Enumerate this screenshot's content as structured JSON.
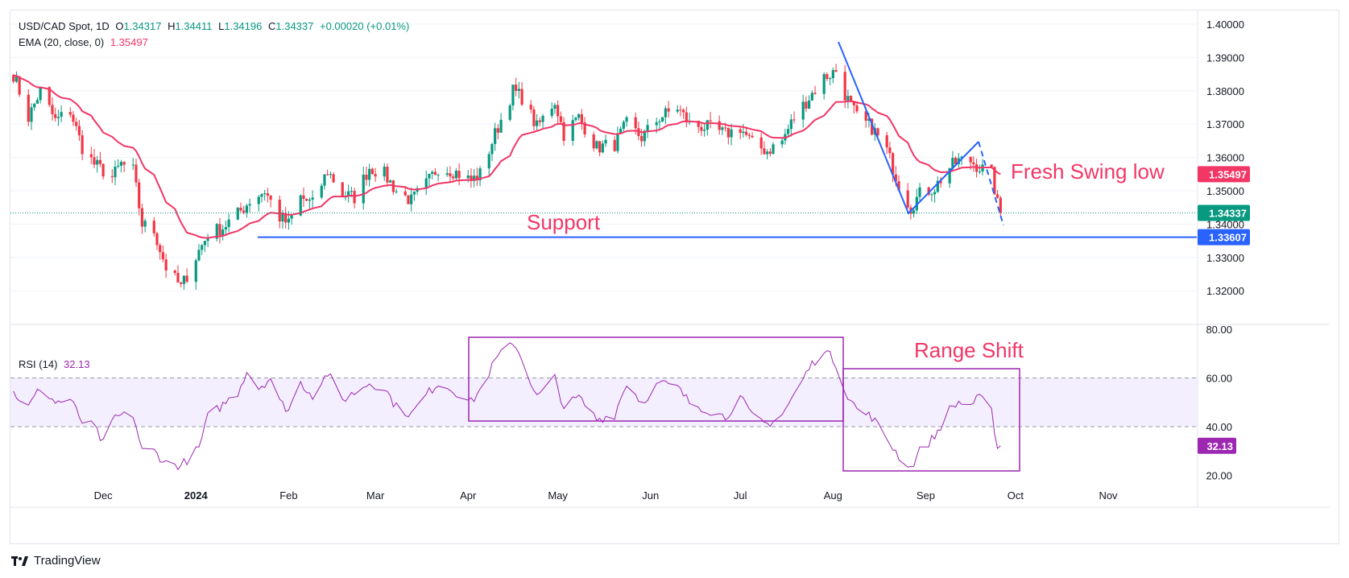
{
  "legend": {
    "symbol": "USD/CAD Spot, 1D",
    "open_label": "O",
    "open": "1.34317",
    "high_label": "H",
    "high": "1.34411",
    "low_label": "L",
    "low": "1.34196",
    "close_label": "C",
    "close": "1.34337",
    "change": "+0.00020 (+0.01%)",
    "ema_label": "EMA (20, close, 0)",
    "ema_value": "1.35497",
    "rsi_label": "RSI (14)",
    "rsi_value": "32.13"
  },
  "annotations": {
    "support": "Support",
    "fresh_swing_low": "Fresh Swing low",
    "range_shift": "Range Shift"
  },
  "badges": {
    "ema": "1.35497",
    "last": "1.34337",
    "support": "1.33607",
    "rsi": "32.13"
  },
  "brand": {
    "name": "TradingView"
  },
  "colors": {
    "up": "#089981",
    "down": "#f23645",
    "ema": "#f23666",
    "rsi": "#9c27b0",
    "trend": "#2962ff",
    "box": "#9c27b0",
    "rsi_band": "#f3efff",
    "grid": "#f0f3fa"
  },
  "chart_data": [
    {
      "type": "candlestick",
      "title": "USD/CAD Spot, 1D",
      "x_ticks": [
        "Dec",
        "2024",
        "Feb",
        "Mar",
        "Apr",
        "May",
        "Jun",
        "Jul",
        "Aug",
        "Sep",
        "Oct",
        "Nov"
      ],
      "y_ticks": [
        "1.40000",
        "1.39000",
        "1.38000",
        "1.37000",
        "1.36000",
        "1.35000",
        "1.34000",
        "1.33000",
        "1.32000"
      ],
      "ylim": [
        1.3116,
        1.4031
      ],
      "support_level": 1.33607,
      "last_close": 1.34337,
      "ema20_last": 1.35497,
      "close_anchors": [
        [
          "2023-11-01",
          1.385
        ],
        [
          "2023-11-06",
          1.372
        ],
        [
          "2023-11-10",
          1.38
        ],
        [
          "2023-11-15",
          1.371
        ],
        [
          "2023-11-20",
          1.374
        ],
        [
          "2023-11-24",
          1.363
        ],
        [
          "2023-11-28",
          1.358
        ],
        [
          "2023-12-04",
          1.354
        ],
        [
          "2023-12-07",
          1.358
        ],
        [
          "2023-12-11",
          1.356
        ],
        [
          "2023-12-14",
          1.34
        ],
        [
          "2023-12-18",
          1.338
        ],
        [
          "2023-12-22",
          1.327
        ],
        [
          "2023-12-27",
          1.321
        ],
        [
          "2024-01-02",
          1.332
        ],
        [
          "2024-01-05",
          1.337
        ],
        [
          "2024-01-10",
          1.339
        ],
        [
          "2024-01-15",
          1.343
        ],
        [
          "2024-01-19",
          1.347
        ],
        [
          "2024-01-24",
          1.35
        ],
        [
          "2024-01-29",
          1.342
        ],
        [
          "2024-02-01",
          1.34
        ],
        [
          "2024-02-05",
          1.348
        ],
        [
          "2024-02-09",
          1.346
        ],
        [
          "2024-02-14",
          1.356
        ],
        [
          "2024-02-19",
          1.349
        ],
        [
          "2024-02-23",
          1.348
        ],
        [
          "2024-02-28",
          1.357
        ],
        [
          "2024-03-04",
          1.355
        ],
        [
          "2024-03-08",
          1.35
        ],
        [
          "2024-03-13",
          1.347
        ],
        [
          "2024-03-18",
          1.352
        ],
        [
          "2024-03-22",
          1.357
        ],
        [
          "2024-03-27",
          1.356
        ],
        [
          "2024-04-02",
          1.353
        ],
        [
          "2024-04-05",
          1.355
        ],
        [
          "2024-04-10",
          1.367
        ],
        [
          "2024-04-16",
          1.38
        ],
        [
          "2024-04-19",
          1.378
        ],
        [
          "2024-04-24",
          1.369
        ],
        [
          "2024-04-30",
          1.377
        ],
        [
          "2024-05-03",
          1.367
        ],
        [
          "2024-05-08",
          1.372
        ],
        [
          "2024-05-14",
          1.363
        ],
        [
          "2024-05-20",
          1.364
        ],
        [
          "2024-05-24",
          1.37
        ],
        [
          "2024-05-29",
          1.366
        ],
        [
          "2024-06-04",
          1.372
        ],
        [
          "2024-06-10",
          1.375
        ],
        [
          "2024-06-14",
          1.37
        ],
        [
          "2024-06-20",
          1.369
        ],
        [
          "2024-06-26",
          1.367
        ],
        [
          "2024-07-01",
          1.369
        ],
        [
          "2024-07-05",
          1.364
        ],
        [
          "2024-07-10",
          1.362
        ],
        [
          "2024-07-15",
          1.365
        ],
        [
          "2024-07-19",
          1.372
        ],
        [
          "2024-07-24",
          1.378
        ],
        [
          "2024-07-29",
          1.384
        ],
        [
          "2024-08-02",
          1.386
        ],
        [
          "2024-08-05",
          1.379
        ],
        [
          "2024-08-09",
          1.372
        ],
        [
          "2024-08-14",
          1.369
        ],
        [
          "2024-08-19",
          1.362
        ],
        [
          "2024-08-23",
          1.352
        ],
        [
          "2024-08-27",
          1.345
        ],
        [
          "2024-08-30",
          1.349
        ],
        [
          "2024-09-04",
          1.351
        ],
        [
          "2024-09-09",
          1.357
        ],
        [
          "2024-09-12",
          1.359
        ],
        [
          "2024-09-16",
          1.359
        ],
        [
          "2024-09-19",
          1.357
        ],
        [
          "2024-09-23",
          1.355
        ],
        [
          "2024-09-25",
          1.346
        ],
        [
          "2024-09-26",
          1.34337
        ]
      ]
    },
    {
      "type": "line",
      "title": "RSI (14)",
      "y_ticks": [
        "80.00",
        "60.00",
        "40.00",
        "20.00"
      ],
      "ylim": [
        14,
        81
      ],
      "band": [
        40,
        60
      ],
      "last_value": 32.13,
      "series": [
        {
          "values": [
            [
              "2023-11-01",
              54
            ],
            [
              "2023-11-06",
              48
            ],
            [
              "2023-11-10",
              56
            ],
            [
              "2023-11-15",
              50
            ],
            [
              "2023-11-20",
              51
            ],
            [
              "2023-11-24",
              42
            ],
            [
              "2023-11-28",
              40
            ],
            [
              "2023-12-01",
              33
            ],
            [
              "2023-12-05",
              44
            ],
            [
              "2023-12-11",
              45
            ],
            [
              "2023-12-14",
              30
            ],
            [
              "2023-12-18",
              30
            ],
            [
              "2023-12-22",
              25
            ],
            [
              "2023-12-27",
              24
            ],
            [
              "2024-01-02",
              31
            ],
            [
              "2024-01-05",
              44
            ],
            [
              "2024-01-10",
              49
            ],
            [
              "2024-01-15",
              54
            ],
            [
              "2024-01-18",
              63
            ],
            [
              "2024-01-22",
              56
            ],
            [
              "2024-01-26",
              60
            ],
            [
              "2024-01-29",
              50
            ],
            [
              "2024-02-01",
              47
            ],
            [
              "2024-02-05",
              58
            ],
            [
              "2024-02-09",
              53
            ],
            [
              "2024-02-14",
              62
            ],
            [
              "2024-02-19",
              51
            ],
            [
              "2024-02-23",
              54
            ],
            [
              "2024-02-28",
              58
            ],
            [
              "2024-03-04",
              56
            ],
            [
              "2024-03-08",
              48
            ],
            [
              "2024-03-13",
              45
            ],
            [
              "2024-03-18",
              53
            ],
            [
              "2024-03-22",
              58
            ],
            [
              "2024-03-27",
              55
            ],
            [
              "2024-04-02",
              50
            ],
            [
              "2024-04-05",
              55
            ],
            [
              "2024-04-10",
              67
            ],
            [
              "2024-04-16",
              75
            ],
            [
              "2024-04-19",
              68
            ],
            [
              "2024-04-24",
              52
            ],
            [
              "2024-04-30",
              60
            ],
            [
              "2024-05-03",
              48
            ],
            [
              "2024-05-08",
              52
            ],
            [
              "2024-05-14",
              43
            ],
            [
              "2024-05-20",
              45
            ],
            [
              "2024-05-24",
              58
            ],
            [
              "2024-05-29",
              50
            ],
            [
              "2024-06-04",
              58
            ],
            [
              "2024-06-10",
              56
            ],
            [
              "2024-06-14",
              50
            ],
            [
              "2024-06-20",
              47
            ],
            [
              "2024-06-26",
              44
            ],
            [
              "2024-07-01",
              52
            ],
            [
              "2024-07-05",
              44
            ],
            [
              "2024-07-10",
              41
            ],
            [
              "2024-07-15",
              45
            ],
            [
              "2024-07-19",
              53
            ],
            [
              "2024-07-24",
              64
            ],
            [
              "2024-07-29",
              72
            ],
            [
              "2024-08-02",
              66
            ],
            [
              "2024-08-05",
              55
            ],
            [
              "2024-08-09",
              47
            ],
            [
              "2024-08-14",
              44
            ],
            [
              "2024-08-19",
              35
            ],
            [
              "2024-08-23",
              28
            ],
            [
              "2024-08-27",
              23
            ],
            [
              "2024-08-30",
              30
            ],
            [
              "2024-09-04",
              36
            ],
            [
              "2024-09-09",
              47
            ],
            [
              "2024-09-12",
              50
            ],
            [
              "2024-09-16",
              49
            ],
            [
              "2024-09-19",
              52
            ],
            [
              "2024-09-23",
              46
            ],
            [
              "2024-09-25",
              32
            ],
            [
              "2024-09-26",
              32.13
            ]
          ]
        }
      ]
    }
  ]
}
